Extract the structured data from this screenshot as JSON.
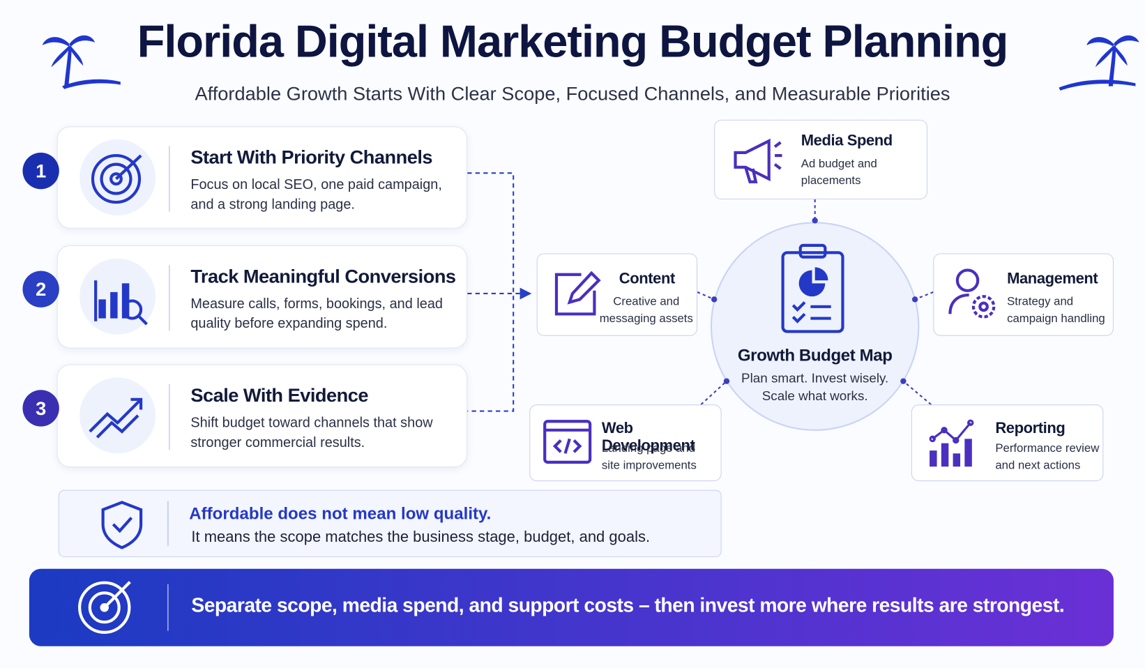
{
  "header": {
    "title": "Florida Digital Marketing Budget Planning",
    "subtitle": "Affordable Growth Starts With Clear Scope, Focused Channels, and Measurable Priorities"
  },
  "steps": [
    {
      "number": 1,
      "title": "Start With Priority Channels",
      "description": "Focus on local SEO, one paid campaign, and a strong landing page."
    },
    {
      "number": 2,
      "title": "Track Meaningful Conversions",
      "description": "Measure calls, forms, bookings, and lead quality before expanding spend."
    },
    {
      "number": 3,
      "title": "Scale With Evidence",
      "description": "Shift budget toward channels that show stronger commercial results."
    }
  ],
  "hub": {
    "title": "Growth Budget Map",
    "description": "Plan smart. Invest wisely. Scale what works."
  },
  "nodes": [
    {
      "title": "Media Spend",
      "description": "Ad budget and placements"
    },
    {
      "title": "Content",
      "description": "Creative and messaging assets"
    },
    {
      "title": "Management",
      "description": "Strategy and campaign handling"
    },
    {
      "title": "Web Development",
      "description": "Landing page and site improvements"
    },
    {
      "title": "Reporting",
      "description": "Performance review and next actions"
    }
  ],
  "callout": {
    "title": "Affordable does not mean low quality.",
    "description": "It means the scope matches the business stage, budget, and goals."
  },
  "footer": {
    "text": "Separate scope, media spend, and support costs – then invest more where results are strongest."
  }
}
